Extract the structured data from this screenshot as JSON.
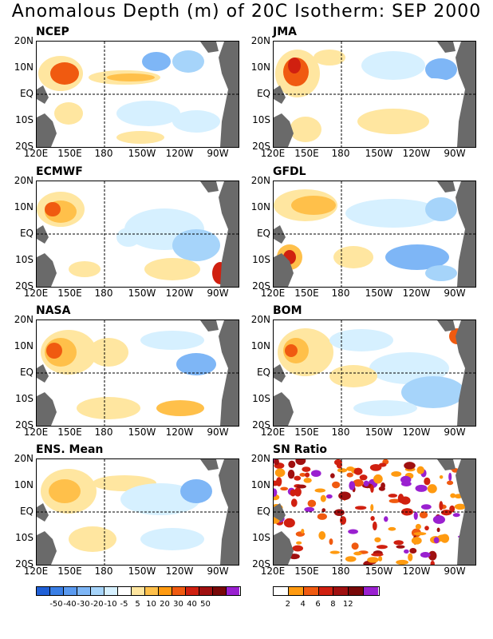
{
  "title": "Anomalous Depth (m) of 20C Isotherm: SEP 2000",
  "panels": [
    {
      "label": "NCEP"
    },
    {
      "label": "JMA"
    },
    {
      "label": "ECMWF"
    },
    {
      "label": "GFDL"
    },
    {
      "label": "NASA"
    },
    {
      "label": "BOM"
    },
    {
      "label": "ENS. Mean"
    },
    {
      "label": "SN Ratio"
    }
  ],
  "lat_labels": [
    "20N",
    "10N",
    "EQ",
    "10S",
    "20S"
  ],
  "lon_labels": [
    "120E",
    "150E",
    "180",
    "150W",
    "120W",
    "90W"
  ],
  "legend_depth": {
    "colors": [
      "#1f5fd6",
      "#3a7fe6",
      "#5a9af0",
      "#7eb6f6",
      "#a6d4fa",
      "#d6f0ff",
      "#ffffff",
      "#ffe6a0",
      "#ffc04a",
      "#ff9a10",
      "#f05a10",
      "#d02010",
      "#a01010",
      "#780808",
      "#9a20d0"
    ],
    "labels": [
      "-50",
      "-40",
      "-30",
      "-20",
      "-10",
      "-5",
      "5",
      "10",
      "20",
      "30",
      "40",
      "50"
    ]
  },
  "legend_sn": {
    "colors": [
      "#ffffff",
      "#ff9a10",
      "#f05a10",
      "#d02010",
      "#a01010",
      "#780808",
      "#9a20d0"
    ],
    "labels": [
      "2",
      "4",
      "6",
      "8",
      "12"
    ]
  }
}
